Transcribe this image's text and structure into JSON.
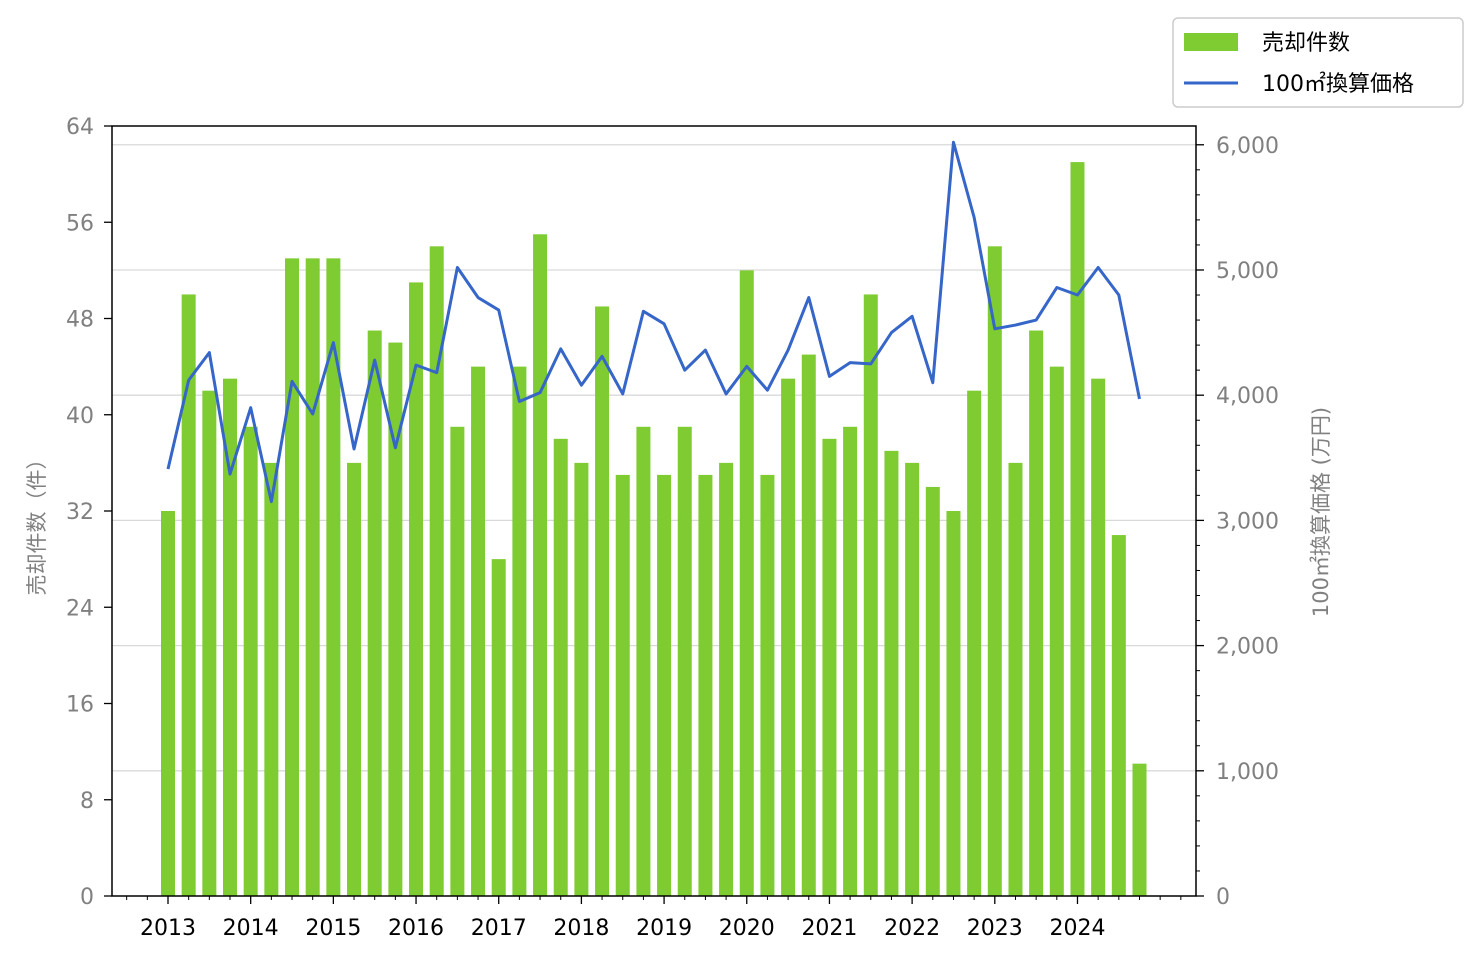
{
  "chart_data": {
    "type": "bar",
    "x": [
      "2013Q1",
      "2013Q2",
      "2013Q3",
      "2013Q4",
      "2014Q1",
      "2014Q2",
      "2014Q3",
      "2014Q4",
      "2015Q1",
      "2015Q2",
      "2015Q3",
      "2015Q4",
      "2016Q1",
      "2016Q2",
      "2016Q3",
      "2016Q4",
      "2017Q1",
      "2017Q2",
      "2017Q3",
      "2017Q4",
      "2018Q1",
      "2018Q2",
      "2018Q3",
      "2018Q4",
      "2019Q1",
      "2019Q2",
      "2019Q3",
      "2019Q4",
      "2020Q1",
      "2020Q2",
      "2020Q3",
      "2020Q4",
      "2021Q1",
      "2021Q2",
      "2021Q3",
      "2021Q4",
      "2022Q1",
      "2022Q2",
      "2022Q3",
      "2022Q4",
      "2023Q1",
      "2023Q2",
      "2023Q3",
      "2023Q4",
      "2024Q1",
      "2024Q2",
      "2024Q3",
      "2024Q4"
    ],
    "x_tick_labels": [
      "2013",
      "2014",
      "2015",
      "2016",
      "2017",
      "2018",
      "2019",
      "2020",
      "2021",
      "2022",
      "2023",
      "2024"
    ],
    "series": [
      {
        "name": "売却件数",
        "type": "bar",
        "axis": "left",
        "color": "#7fcb32",
        "values": [
          32,
          50,
          42,
          43,
          39,
          36,
          53,
          53,
          53,
          36,
          47,
          46,
          51,
          54,
          39,
          44,
          28,
          44,
          55,
          38,
          36,
          49,
          35,
          39,
          35,
          39,
          35,
          36,
          52,
          35,
          43,
          45,
          38,
          39,
          50,
          37,
          36,
          34,
          32,
          42,
          54,
          36,
          47,
          44,
          61,
          43,
          30,
          11
        ]
      },
      {
        "name": "100㎡換算価格",
        "type": "line",
        "axis": "right",
        "color": "#3566c8",
        "values": [
          3410,
          4120,
          4340,
          3370,
          3900,
          3150,
          4110,
          3850,
          4420,
          3570,
          4280,
          3580,
          4240,
          4180,
          5020,
          4780,
          4680,
          3950,
          4020,
          4370,
          4080,
          4310,
          4010,
          4670,
          4570,
          4200,
          4360,
          4010,
          4230,
          4040,
          4360,
          4780,
          4150,
          4260,
          4250,
          4500,
          4630,
          4100,
          6020,
          5420,
          4530,
          4560,
          4600,
          4860,
          4800,
          5020,
          4800,
          3970
        ]
      }
    ],
    "yleft": {
      "label": "売却件数（件）",
      "ylim": [
        0,
        64
      ],
      "ticks": [
        0,
        8,
        16,
        24,
        32,
        40,
        48,
        56,
        64
      ]
    },
    "yright": {
      "label": "100㎡換算価格 (万円)",
      "ylim": [
        0,
        6150
      ],
      "ticks": [
        0,
        1000,
        2000,
        3000,
        4000,
        5000,
        6000
      ],
      "tick_labels": [
        "0",
        "1,000",
        "2,000",
        "3,000",
        "4,000",
        "5,000",
        "6,000"
      ]
    },
    "grid": "horizontal (right axis ticks)",
    "legend": {
      "placement": "top-right",
      "entries": [
        "売却件数",
        "100㎡換算価格"
      ]
    }
  }
}
